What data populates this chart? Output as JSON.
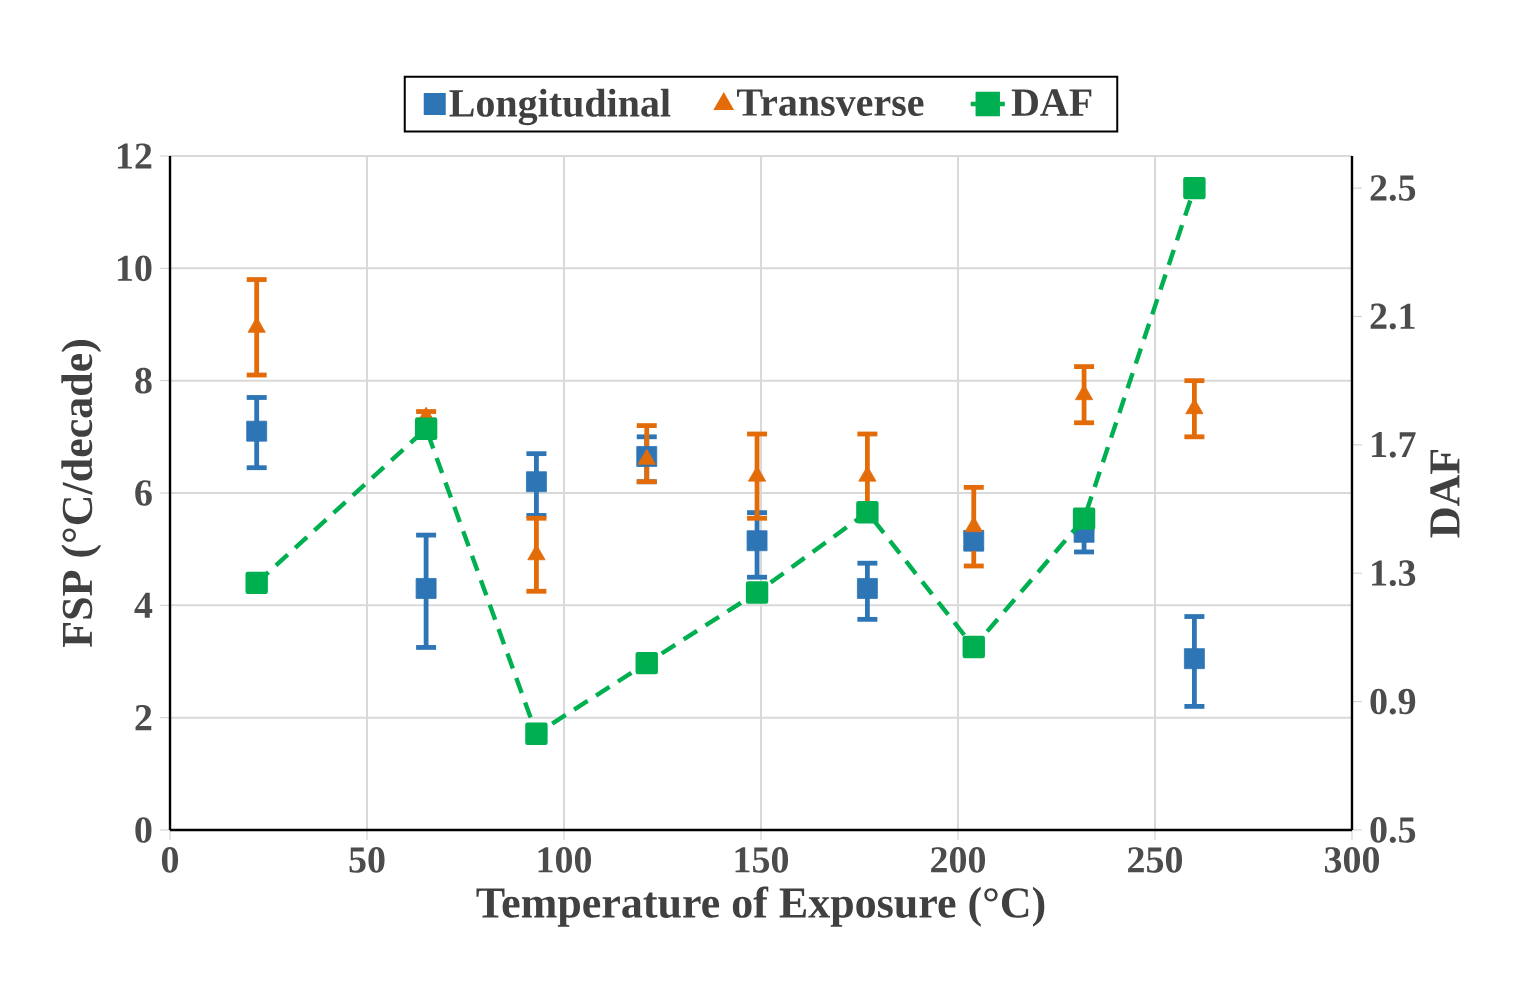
{
  "chart_data": {
    "type": "scatter",
    "xlabel": "Temperature  of Exposure (°C)",
    "ylabel": "FSP (°C/decade)",
    "y2label": "DAF",
    "xlim": [
      0,
      300
    ],
    "xticks": [
      0,
      50,
      100,
      150,
      200,
      250,
      300
    ],
    "ylim": [
      0,
      12
    ],
    "yticks": [
      0,
      2,
      4,
      6,
      8,
      10,
      12
    ],
    "y2lim": [
      0.5,
      2.6
    ],
    "y2ticks": [
      0.5,
      0.9,
      1.3,
      1.7,
      2.1,
      2.5
    ],
    "grid": true,
    "legend": "top",
    "series": [
      {
        "name": "Longitudinal",
        "marker": "square",
        "color": "#2e75b6",
        "x": [
          22,
          65,
          93,
          121,
          149,
          177,
          204,
          232,
          260
        ],
        "values": [
          7.1,
          4.3,
          6.2,
          6.65,
          5.15,
          4.3,
          5.15,
          5.3,
          3.05
        ],
        "errors": [
          [
            6.45,
            7.7
          ],
          [
            3.25,
            5.25
          ],
          [
            5.6,
            6.7
          ],
          [
            6.2,
            7.0
          ],
          [
            4.5,
            5.65
          ],
          [
            3.75,
            4.75
          ],
          [
            5.0,
            5.3
          ],
          [
            4.95,
            5.3
          ],
          [
            2.2,
            3.8
          ]
        ]
      },
      {
        "name": "Transverse",
        "marker": "triangle",
        "color": "#e36c09",
        "x": [
          22,
          65,
          93,
          121,
          149,
          177,
          204,
          232,
          260
        ],
        "values": [
          8.95,
          7.35,
          4.9,
          6.6,
          6.3,
          6.3,
          5.4,
          7.75,
          7.5
        ],
        "errors": [
          [
            8.1,
            9.8
          ],
          [
            7.3,
            7.45
          ],
          [
            4.25,
            5.55
          ],
          [
            6.2,
            7.2
          ],
          [
            5.55,
            7.05
          ],
          [
            5.55,
            7.05
          ],
          [
            4.7,
            6.1
          ],
          [
            7.25,
            8.25
          ],
          [
            7.0,
            8.0
          ]
        ]
      },
      {
        "name": "DAF",
        "type": "line",
        "axis": "y2",
        "marker": "square",
        "line_style": "dashed",
        "color": "#00b050",
        "x": [
          22,
          65,
          93,
          121,
          149,
          177,
          204,
          232,
          260
        ],
        "values": [
          1.27,
          1.75,
          0.8,
          1.02,
          1.24,
          1.49,
          1.07,
          1.47,
          2.5
        ]
      }
    ]
  }
}
